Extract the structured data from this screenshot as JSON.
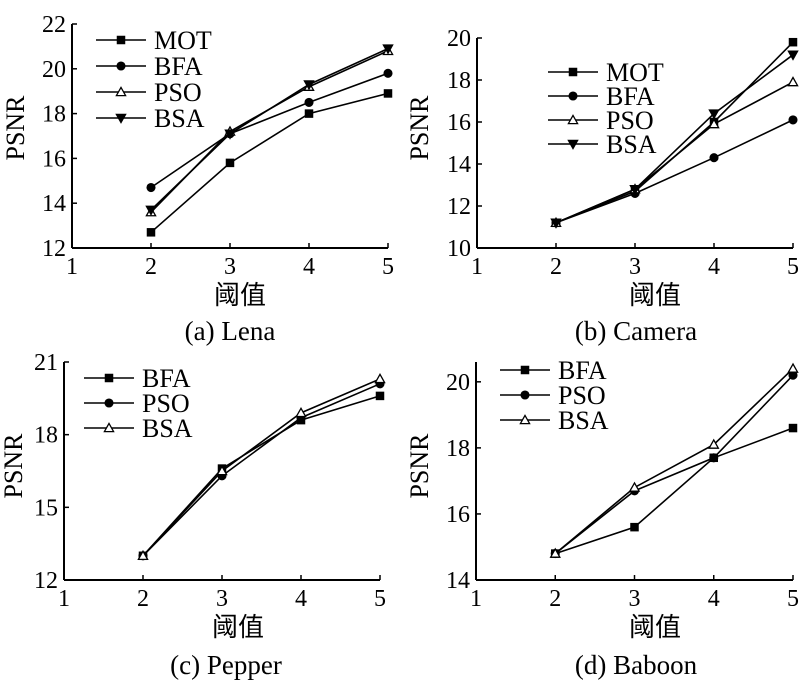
{
  "chart_data": [
    {
      "type": "line",
      "caption": "(a) Lena",
      "xlabel": "阈值",
      "ylabel": "PSNR",
      "xlim": [
        1,
        5
      ],
      "ylim": [
        12,
        22
      ],
      "xticks": [
        "1",
        "2",
        "3",
        "4",
        "5"
      ],
      "yticks": [
        "12",
        "14",
        "16",
        "18",
        "20",
        "22"
      ],
      "x": [
        2,
        3,
        4,
        5
      ],
      "series": [
        {
          "name": "MOT",
          "marker": "square",
          "values": [
            12.7,
            15.8,
            18.0,
            18.9
          ]
        },
        {
          "name": "BFA",
          "marker": "circle",
          "values": [
            14.7,
            17.1,
            18.5,
            19.8
          ]
        },
        {
          "name": "PSO",
          "marker": "triangle-up",
          "values": [
            13.6,
            17.2,
            19.2,
            20.8
          ]
        },
        {
          "name": "BSA",
          "marker": "triangle-down",
          "values": [
            13.7,
            17.1,
            19.3,
            20.9
          ]
        }
      ]
    },
    {
      "type": "line",
      "caption": "(b) Camera",
      "xlabel": "阈值",
      "ylabel": "PSNR",
      "xlim": [
        1,
        5
      ],
      "ylim": [
        10,
        20
      ],
      "xticks": [
        "1",
        "2",
        "3",
        "4",
        "5"
      ],
      "yticks": [
        "10",
        "12",
        "14",
        "16",
        "18",
        "20"
      ],
      "x": [
        2,
        3,
        4,
        5
      ],
      "series": [
        {
          "name": "MOT",
          "marker": "square",
          "values": [
            11.2,
            12.7,
            16.0,
            19.8
          ]
        },
        {
          "name": "BFA",
          "marker": "circle",
          "values": [
            11.2,
            12.6,
            14.3,
            16.1
          ]
        },
        {
          "name": "PSO",
          "marker": "triangle-up",
          "values": [
            11.2,
            12.8,
            15.9,
            17.9
          ]
        },
        {
          "name": "BSA",
          "marker": "triangle-down",
          "values": [
            11.2,
            12.8,
            16.4,
            19.2
          ]
        }
      ]
    },
    {
      "type": "line",
      "caption": "(c) Pepper",
      "xlabel": "阈值",
      "ylabel": "PSNR",
      "xlim": [
        1,
        5
      ],
      "ylim": [
        12,
        21
      ],
      "xticks": [
        "1",
        "2",
        "3",
        "4",
        "5"
      ],
      "yticks": [
        "12",
        "15",
        "18",
        "21"
      ],
      "x": [
        2,
        3,
        4,
        5
      ],
      "series": [
        {
          "name": "BFA",
          "marker": "square",
          "values": [
            13.0,
            16.6,
            18.6,
            19.6
          ]
        },
        {
          "name": "PSO",
          "marker": "circle",
          "values": [
            13.0,
            16.3,
            18.7,
            20.1
          ]
        },
        {
          "name": "BSA",
          "marker": "triangle-up",
          "values": [
            13.0,
            16.5,
            18.9,
            20.3
          ]
        }
      ]
    },
    {
      "type": "line",
      "caption": "(d) Baboon",
      "xlabel": "阈值",
      "ylabel": "PSNR",
      "xlim": [
        1,
        5
      ],
      "ylim": [
        14,
        20.6
      ],
      "xticks": [
        "1",
        "2",
        "3",
        "4",
        "5"
      ],
      "yticks": [
        "14",
        "16",
        "18",
        "20"
      ],
      "x": [
        2,
        3,
        4,
        5
      ],
      "series": [
        {
          "name": "BFA",
          "marker": "square",
          "values": [
            14.8,
            15.6,
            17.7,
            18.6
          ]
        },
        {
          "name": "PSO",
          "marker": "circle",
          "values": [
            14.8,
            16.7,
            17.7,
            20.2
          ]
        },
        {
          "name": "BSA",
          "marker": "triangle-up",
          "values": [
            14.8,
            16.8,
            18.1,
            20.4
          ]
        }
      ]
    }
  ]
}
